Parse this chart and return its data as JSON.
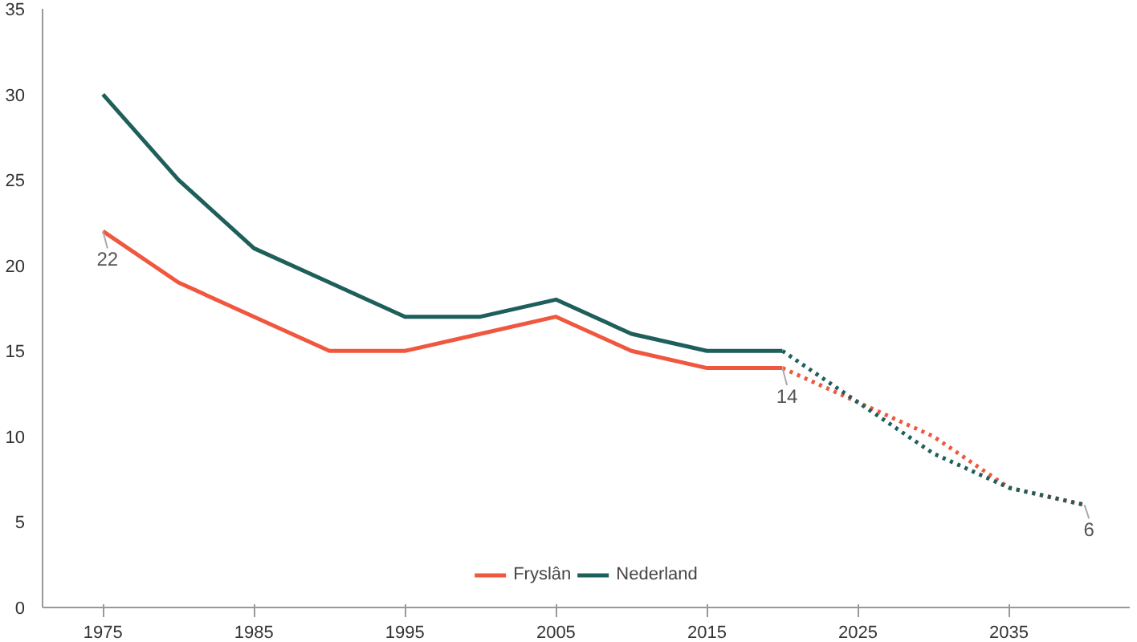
{
  "chart_data": {
    "type": "line",
    "x": [
      1975,
      1980,
      1985,
      1990,
      1995,
      2000,
      2005,
      2010,
      2015,
      2020
    ],
    "series": [
      {
        "name": "Fryslân",
        "color": "#f0573f",
        "values": [
          22,
          19,
          17,
          15,
          15,
          16,
          17,
          15,
          14,
          14
        ]
      },
      {
        "name": "Nederland",
        "color": "#1f5f5b",
        "values": [
          30,
          25,
          21,
          19,
          17,
          17,
          18,
          16,
          15,
          15
        ]
      },
      {
        "color": "#f0573f",
        "x": [
          2020,
          2025,
          2030,
          2035,
          2040
        ],
        "values": [
          14,
          12,
          10,
          7,
          6
        ],
        "line_style": "dotted"
      },
      {
        "color": "#1f5f5b",
        "x": [
          2020,
          2025,
          2030,
          2035,
          2040
        ],
        "values": [
          15,
          12,
          9,
          7,
          6
        ],
        "line_style": "dotted"
      }
    ],
    "xlim": [
      1971,
      2043
    ],
    "xticks": [
      1975,
      1985,
      1995,
      2005,
      2015,
      2025,
      2035
    ],
    "ylim": [
      0,
      35
    ],
    "yticks": [
      0,
      5,
      10,
      15,
      20,
      25,
      30,
      35
    ],
    "annotations": [
      {
        "text": "22",
        "x": 1975,
        "y": 22
      },
      {
        "text": "14",
        "x": 2020,
        "y": 14
      },
      {
        "text": "6",
        "x": 2040,
        "y": 6
      }
    ],
    "grid": false,
    "legend": "bottom",
    "marker": "none",
    "line_style": "solid"
  }
}
